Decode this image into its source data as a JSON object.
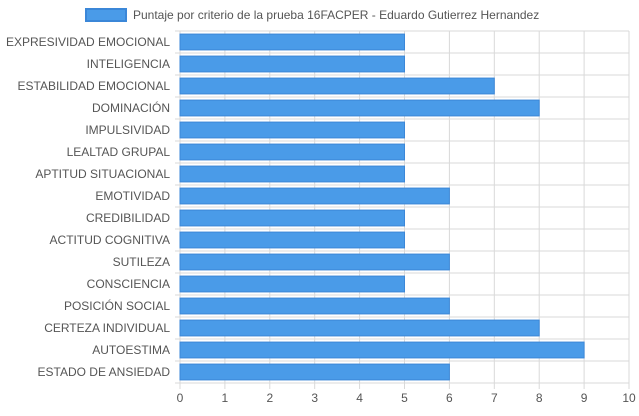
{
  "chart_data": {
    "type": "bar",
    "orientation": "horizontal",
    "legend": {
      "label": "Puntaje por criterio de la prueba 16FACPER - Eduardo Gutierrez Hernandez",
      "position": "top"
    },
    "categories": [
      "EXPRESIVIDAD EMOCIONAL",
      "INTELIGENCIA",
      "ESTABILIDAD EMOCIONAL",
      "DOMINACIÓN",
      "IMPULSIVIDAD",
      "LEALTAD GRUPAL",
      "APTITUD SITUACIONAL",
      "EMOTIVIDAD",
      "CREDIBILIDAD",
      "ACTITUD COGNITIVA",
      "SUTILEZA",
      "CONSCIENCIA",
      "POSICIÓN SOCIAL",
      "CERTEZA INDIVIDUAL",
      "AUTOESTIMA",
      "ESTADO DE ANSIEDAD"
    ],
    "series": [
      {
        "name": "Puntaje por criterio de la prueba 16FACPER - Eduardo Gutierrez Hernandez",
        "values": [
          5,
          5,
          7,
          8,
          5,
          5,
          5,
          6,
          5,
          5,
          6,
          5,
          6,
          8,
          9,
          6
        ]
      }
    ],
    "xlim": [
      0,
      10
    ],
    "x_ticks": [
      "0",
      "1",
      "2",
      "3",
      "4",
      "5",
      "6",
      "7",
      "8",
      "9",
      "10"
    ],
    "grid": true,
    "colors": {
      "bar_fill": "#4a9be8",
      "bar_stroke": "#3b87d8",
      "grid": "#d9d9d9",
      "text": "#555555"
    }
  }
}
